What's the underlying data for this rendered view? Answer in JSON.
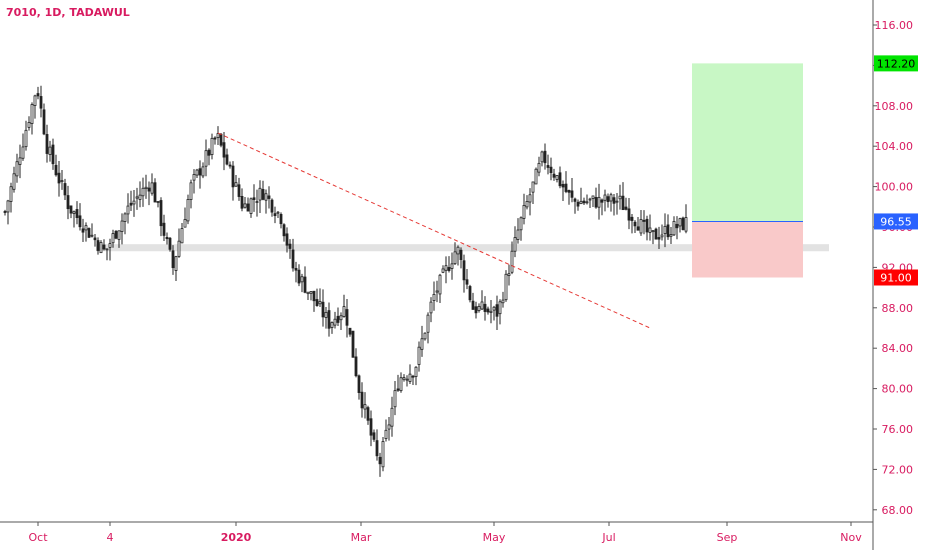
{
  "symbol": {
    "title": "7010, 1D, TADAWUL"
  },
  "colors": {
    "text_accent": "#d81b60",
    "candle": "#222222",
    "axis_line": "#555555",
    "trendline": "#e53935",
    "support_band": "#e2e2e2",
    "target_zone": "#c8f7c5",
    "stop_zone": "#f9c9c9",
    "entry_line": "#2962ff",
    "entry_badge": "#2962ff",
    "target_badge": "#00e400",
    "stop_badge": "#ff0000"
  },
  "price_axis": {
    "ticks": [
      "116.00",
      "112.00",
      "108.00",
      "104.00",
      "100.00",
      "96.00",
      "92.00",
      "88.00",
      "84.00",
      "80.00",
      "76.00",
      "72.00",
      "68.00"
    ],
    "badges": {
      "target": "112.20",
      "entry": "96.55",
      "stop": "91.00"
    }
  },
  "time_axis": {
    "ticks": [
      "Oct",
      "4",
      "2020",
      "Mar",
      "May",
      "Jul",
      "Sep",
      "Nov"
    ]
  },
  "chart_data": {
    "type": "candlestick",
    "title": "7010, 1D, TADAWUL",
    "ylim": [
      66,
      118
    ],
    "grid": false,
    "x_axis": [
      "Oct",
      "4",
      "2020",
      "Mar",
      "May",
      "Jul",
      "Sep",
      "Nov"
    ],
    "path_keypoints": [
      [
        "start",
        97.5
      ],
      [
        "late Sep",
        110.0
      ],
      [
        "Oct",
        104.0
      ],
      [
        "mid Oct",
        98.0
      ],
      [
        "early Nov",
        93.5
      ],
      [
        "mid Nov",
        98.0
      ],
      [
        "late Nov",
        100.5
      ],
      [
        "early Dec",
        92.0
      ],
      [
        "mid Dec",
        100.0
      ],
      [
        "late Dec",
        105.0
      ],
      [
        "2020",
        98.0
      ],
      [
        "mid Jan",
        99.5
      ],
      [
        "late Jan",
        97.0
      ],
      [
        "early Feb",
        92.0
      ],
      [
        "mid Feb",
        86.5
      ],
      [
        "late Feb",
        88.0
      ],
      [
        "early Mar",
        80.0
      ],
      [
        "Mar low",
        72.3
      ],
      [
        "late Mar",
        81.0
      ],
      [
        "early Apr",
        82.0
      ],
      [
        "mid Apr",
        89.0
      ],
      [
        "late Apr",
        94.0
      ],
      [
        "early May",
        88.0
      ],
      [
        "May",
        87.5
      ],
      [
        "mid May",
        96.0
      ],
      [
        "late May",
        103.0
      ],
      [
        "June",
        98.5
      ],
      [
        "Jul",
        98.6
      ],
      [
        "mid Jul",
        95.0
      ],
      [
        "late Jul",
        96.5
      ]
    ],
    "trendline": {
      "from": [
        "late Dec",
        105.3
      ],
      "to": [
        "Aug",
        86.0
      ],
      "style": "dashed"
    },
    "support_zone": [
      93.6,
      94.3
    ],
    "position": {
      "entry": 96.55,
      "target": 112.2,
      "stop": 91.0,
      "target_label": "112.20",
      "entry_label": "96.55",
      "stop_label": "91.00"
    }
  }
}
